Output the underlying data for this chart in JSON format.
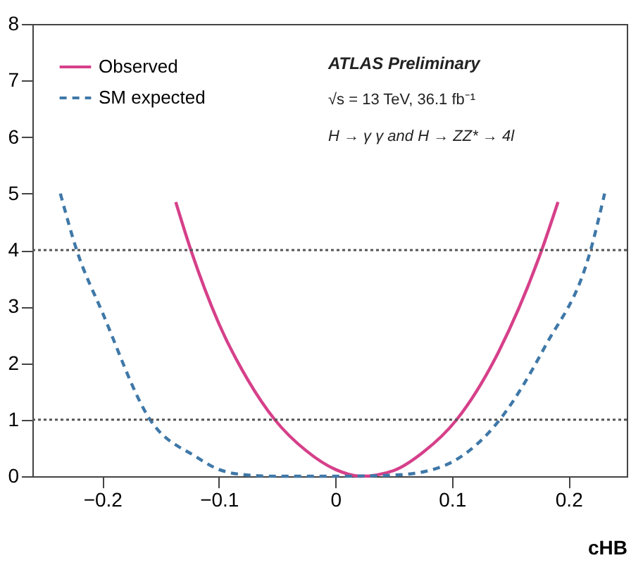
{
  "chart_data": {
    "type": "line",
    "xlabel": "cHB",
    "xlim": [
      -0.26,
      0.25
    ],
    "ylim": [
      0,
      8
    ],
    "xticks": [
      -0.2,
      -0.1,
      0,
      0.1,
      0.2
    ],
    "yticks": [
      0,
      1,
      2,
      3,
      4,
      5,
      6,
      7,
      8
    ],
    "grid": false,
    "legend": "top left",
    "marker": "none",
    "series": [
      {
        "name": "Observed",
        "color": "#d6408a",
        "line_style": "solid",
        "x": [
          -0.137,
          -0.124,
          -0.1,
          -0.075,
          -0.052,
          -0.025,
          0,
          0.022,
          0.05,
          0.075,
          0.104,
          0.14,
          0.177,
          0.191
        ],
        "values": [
          4.85,
          4,
          2.7,
          1.7,
          1,
          0.45,
          0.12,
          0,
          0.1,
          0.42,
          1,
          2.2,
          4,
          4.85
        ]
      },
      {
        "name": "SM expected",
        "color": "#3f78a8",
        "line_style": "dashed",
        "x": [
          -0.236,
          -0.222,
          -0.2,
          -0.159,
          -0.12,
          -0.1,
          -0.08,
          -0.05,
          0,
          0.05,
          0.08,
          0.1,
          0.141,
          0.18,
          0.219,
          0.231
        ],
        "values": [
          5,
          4,
          2.9,
          1,
          0.35,
          0.12,
          0.03,
          0,
          0,
          0.02,
          0.1,
          0.25,
          1,
          2.3,
          4,
          5
        ]
      }
    ],
    "ref_lines": [
      {
        "axis": "y",
        "value": 1,
        "color": "#555555",
        "line_style": "dotted"
      },
      {
        "axis": "y",
        "value": 4,
        "color": "#555555",
        "line_style": "dotted"
      }
    ],
    "annotations": [
      "ATLAS Preliminary",
      "√s = 13 TeV, 36.1 fb⁻¹",
      "H → γ γ and H → ZZ* → 4l"
    ]
  }
}
